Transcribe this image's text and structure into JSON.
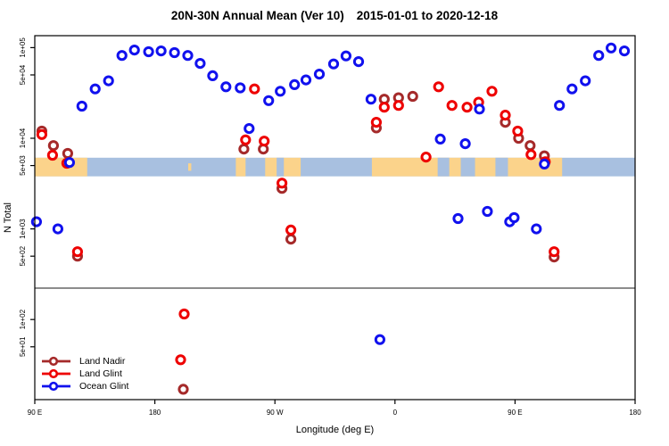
{
  "colors": {
    "land_nadir": "#a52a2a",
    "land_glint": "#ee0000",
    "ocean_glint": "#1111ee",
    "map_ocean": "#a8c0e0",
    "map_land": "#fbd38b",
    "separator_line": "#8c8c8c",
    "axis": "#000000",
    "marker_fill": "#ffffff"
  },
  "legend": {
    "items": [
      {
        "label": "Land Nadir",
        "series": "land_nadir"
      },
      {
        "label": "Land Glint",
        "series": "land_glint"
      },
      {
        "label": "Ocean Glint",
        "series": "ocean_glint"
      }
    ]
  },
  "chart_data": {
    "type": "scatter",
    "title_main": "20N-30N Annual Mean (Ver 10)",
    "title_dates": "2015-01-01 to 2020-12-18",
    "x_axis": {
      "label": "Longitude (deg E)",
      "note": "x stored as degrees eastward from 90E at left edge; axis wraps 90E-180-90W-0-90E-180",
      "ticks": [
        {
          "deg": 0,
          "label": "90 E"
        },
        {
          "deg": 90,
          "label": "180"
        },
        {
          "deg": 180,
          "label": "90 W"
        },
        {
          "deg": 270,
          "label": "0"
        },
        {
          "deg": 360,
          "label": "90 E"
        },
        {
          "deg": 450,
          "label": "180"
        }
      ]
    },
    "y_axis": {
      "label": "N Total",
      "scale": "log",
      "range": [
        15,
        180000
      ],
      "ticks": [
        {
          "value": 100000,
          "label": "1e+05"
        },
        {
          "value": 50000,
          "label": "5e+04"
        },
        {
          "value": 10000,
          "label": "1e+04"
        },
        {
          "value": 5000,
          "label": "5e+03"
        },
        {
          "value": 1000,
          "label": "1e+03"
        },
        {
          "value": 500,
          "label": "5e+02"
        },
        {
          "value": 100,
          "label": "1e+02"
        },
        {
          "value": 50,
          "label": "5e+01"
        }
      ]
    },
    "separator_value": 222,
    "map_strip": {
      "n_top": 6100,
      "n_bottom": 3800,
      "land_segments_deg": [
        [
          0,
          39.3
        ],
        [
          150.7,
          158
        ],
        [
          172.7,
          199.3
        ],
        [
          252.7,
          395.3
        ]
      ],
      "ocean_gaps_deg": [
        [
          181.3,
          186.7
        ],
        [
          302,
          310.7
        ],
        [
          319.3,
          330
        ],
        [
          345.3,
          354.7
        ]
      ],
      "island_segments_deg": [
        [
          115,
          117.3
        ]
      ]
    },
    "series": [
      {
        "name": "Land Nadir",
        "key": "land_nadir",
        "points": [
          [
            5.3,
            12000
          ],
          [
            14,
            8300
          ],
          [
            24.7,
            6800
          ],
          [
            32,
            500
          ],
          [
            111.3,
            17
          ],
          [
            156.7,
            7600
          ],
          [
            171.3,
            7600
          ],
          [
            185.3,
            2800
          ],
          [
            192,
            770
          ],
          [
            256,
            13000
          ],
          [
            262,
            27000
          ],
          [
            272.7,
            28000
          ],
          [
            283.3,
            29000
          ],
          [
            352.7,
            15000
          ],
          [
            362.7,
            10000
          ],
          [
            371.3,
            8300
          ],
          [
            382,
            6400
          ],
          [
            389.3,
            490
          ]
        ]
      },
      {
        "name": "Land Glint",
        "key": "land_glint",
        "points": [
          [
            5.3,
            11000
          ],
          [
            13.3,
            6500
          ],
          [
            24,
            5300
          ],
          [
            32,
            560
          ],
          [
            109.3,
            36
          ],
          [
            112,
            115
          ],
          [
            158,
            9600
          ],
          [
            164.7,
            35000
          ],
          [
            172,
            9300
          ],
          [
            185.3,
            3200
          ],
          [
            192,
            970
          ],
          [
            256,
            15000
          ],
          [
            262,
            22000
          ],
          [
            272.7,
            23000
          ],
          [
            293.3,
            6200
          ],
          [
            302.7,
            37000
          ],
          [
            312.7,
            23000
          ],
          [
            324,
            22000
          ],
          [
            332.7,
            25000
          ],
          [
            342.7,
            33000
          ],
          [
            352.7,
            18000
          ],
          [
            362,
            12000
          ],
          [
            372,
            6600
          ],
          [
            382.7,
            5500
          ],
          [
            389.3,
            560
          ]
        ]
      },
      {
        "name": "Ocean Glint",
        "key": "ocean_glint",
        "points": [
          [
            1.3,
            1200
          ],
          [
            17.3,
            1000
          ],
          [
            26,
            5400
          ],
          [
            35.3,
            22600
          ],
          [
            45.3,
            35000
          ],
          [
            55.3,
            43000
          ],
          [
            65.3,
            82000
          ],
          [
            74.7,
            94000
          ],
          [
            85.3,
            90000
          ],
          [
            94.7,
            92000
          ],
          [
            104.7,
            88000
          ],
          [
            114.7,
            82000
          ],
          [
            124,
            67000
          ],
          [
            133.3,
            49000
          ],
          [
            143.3,
            37000
          ],
          [
            154,
            36000
          ],
          [
            160.7,
            12800
          ],
          [
            175.3,
            26000
          ],
          [
            184,
            33000
          ],
          [
            194.7,
            39000
          ],
          [
            203.3,
            44000
          ],
          [
            213.3,
            51000
          ],
          [
            224,
            66000
          ],
          [
            233.3,
            81000
          ],
          [
            242.7,
            70000
          ],
          [
            252,
            27000
          ],
          [
            258.7,
            60
          ],
          [
            304,
            9800
          ],
          [
            317.3,
            1300
          ],
          [
            322.7,
            8700
          ],
          [
            333.3,
            21000
          ],
          [
            339.3,
            1560
          ],
          [
            356,
            1200
          ],
          [
            359.3,
            1330
          ],
          [
            376,
            1000
          ],
          [
            382,
            5200
          ],
          [
            393.3,
            23000
          ],
          [
            402.7,
            35000
          ],
          [
            412.7,
            43000
          ],
          [
            422.7,
            82000
          ],
          [
            432,
            99000
          ],
          [
            442,
            92000
          ]
        ]
      }
    ]
  }
}
